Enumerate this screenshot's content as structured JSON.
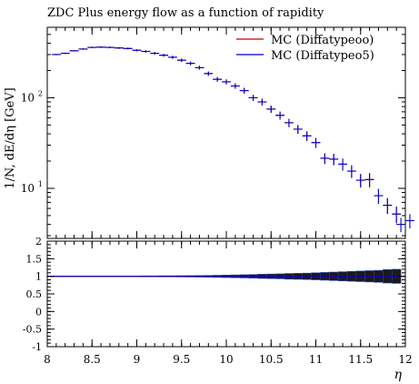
{
  "chart_data": {
    "type": "line",
    "title": "ZDC Plus energy flow as a function of rapidity",
    "xlabel": "η",
    "ylabel": "1/N, dE/dη [GeV]",
    "xlim": [
      8,
      12
    ],
    "ylim": [
      2.8,
      600
    ],
    "yscale": "log",
    "ratio_ylim": [
      -1,
      2
    ],
    "legend_position": "top-right",
    "x_ticks": [
      "8",
      "8.5",
      "9",
      "9.5",
      "10",
      "10.5",
      "11",
      "11.5",
      "12"
    ],
    "y_ticks": [
      {
        "value": 10,
        "base": "10",
        "exp": "1"
      },
      {
        "value": 100,
        "base": "10",
        "exp": "2"
      }
    ],
    "ratio_ticks": [
      "2",
      "1.5",
      "1",
      "0.5",
      "0",
      "-0.5",
      "-1"
    ],
    "x": [
      8.1,
      8.2,
      8.3,
      8.4,
      8.5,
      8.6,
      8.7,
      8.8,
      8.9,
      9.0,
      9.1,
      9.2,
      9.3,
      9.4,
      9.5,
      9.6,
      9.7,
      9.8,
      9.9,
      10.0,
      10.1,
      10.2,
      10.3,
      10.4,
      10.5,
      10.6,
      10.7,
      10.8,
      10.9,
      11.0,
      11.1,
      11.2,
      11.3,
      11.4,
      11.5,
      11.6,
      11.7,
      11.8,
      11.9
    ],
    "series": [
      {
        "name": "MC (Diffatypeoo)",
        "color": "#cc0000",
        "values": [
          300,
          310,
          330,
          345,
          360,
          362,
          360,
          355,
          350,
          335,
          325,
          310,
          295,
          280,
          260,
          240,
          215,
          185,
          160,
          150,
          135,
          120,
          100,
          90,
          75,
          64,
          53,
          45,
          38,
          32,
          21.5,
          21,
          18.5,
          15.5,
          12.3,
          12.5,
          8.3,
          6.5,
          5.2
        ]
      },
      {
        "name": "MC (Diffatypeo5)",
        "color": "#0000cc",
        "values": [
          300,
          310,
          330,
          345,
          360,
          362,
          360,
          355,
          350,
          335,
          325,
          310,
          295,
          280,
          260,
          240,
          215,
          185,
          160,
          150,
          135,
          120,
          100,
          90,
          75,
          64,
          53,
          45,
          38,
          32,
          21.5,
          21,
          18.5,
          15.5,
          12.3,
          12.5,
          8.3,
          6.5,
          5.2
        ],
        "extra_points": [
          {
            "x": 11.95,
            "y": 4.0
          },
          {
            "x": 12.05,
            "y": 4.4
          }
        ],
        "ratio_band_halfwidth": [
          0.01,
          0.01,
          0.01,
          0.01,
          0.01,
          0.01,
          0.01,
          0.01,
          0.01,
          0.01,
          0.012,
          0.012,
          0.015,
          0.015,
          0.018,
          0.02,
          0.022,
          0.025,
          0.03,
          0.035,
          0.04,
          0.045,
          0.05,
          0.06,
          0.065,
          0.07,
          0.08,
          0.085,
          0.09,
          0.1,
          0.11,
          0.12,
          0.13,
          0.14,
          0.15,
          0.16,
          0.17,
          0.19,
          0.2
        ]
      }
    ]
  }
}
